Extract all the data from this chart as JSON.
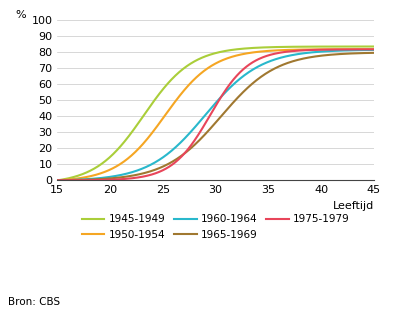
{
  "title": "",
  "ylabel": "%",
  "xlabel": "Leeftijd",
  "xlim": [
    15,
    45
  ],
  "ylim": [
    0,
    100
  ],
  "xticks": [
    15,
    20,
    25,
    30,
    35,
    40,
    45
  ],
  "yticks": [
    0,
    10,
    20,
    30,
    40,
    50,
    60,
    70,
    80,
    90,
    100
  ],
  "source": "Bron: CBS",
  "series": [
    {
      "label": "1945-1949",
      "color": "#aace3a",
      "midpoint": 23.2,
      "steepness": 0.44,
      "max_val": 86
    },
    {
      "label": "1950-1954",
      "color": "#f5a623",
      "midpoint": 25.2,
      "steepness": 0.44,
      "max_val": 83
    },
    {
      "label": "1960-1964",
      "color": "#29b8cc",
      "midpoint": 29.0,
      "steepness": 0.38,
      "max_val": 82
    },
    {
      "label": "1965-1969",
      "color": "#a07830",
      "midpoint": 30.5,
      "steepness": 0.38,
      "max_val": 80
    },
    {
      "label": "1975-1979",
      "color": "#e8455a",
      "midpoint": 29.5,
      "steepness": 0.55,
      "max_val": 82
    }
  ],
  "legend_order": [
    "1945-1949",
    "1950-1954",
    "1960-1964",
    "1965-1969",
    "1975-1979"
  ],
  "figsize": [
    3.96,
    3.13
  ],
  "dpi": 100,
  "background_color": "#ffffff",
  "grid_color": "#c8c8c8"
}
